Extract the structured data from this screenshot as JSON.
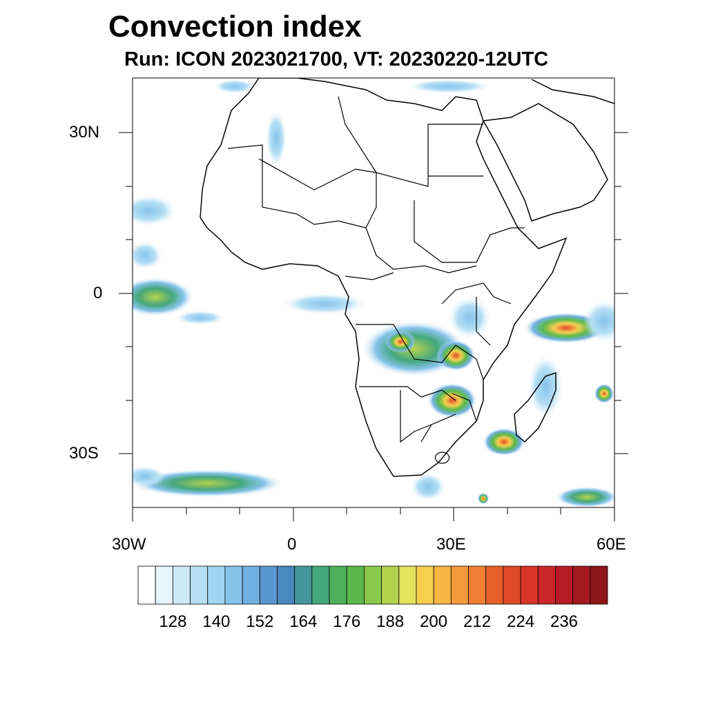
{
  "title": "Convection index",
  "subtitle": "Run: ICON 2023021700,  VT: 20230220-12UTC",
  "map": {
    "projection": "cylindrical equidistant",
    "region": "Africa",
    "lat_labels": [
      "30N",
      "0",
      "30S"
    ],
    "lon_labels": [
      "30W",
      "0",
      "30E",
      "60E"
    ]
  },
  "colorbar": {
    "labels": [
      "128",
      "140",
      "152",
      "164",
      "176",
      "188",
      "200",
      "212",
      "224",
      "236"
    ],
    "colors": [
      "#ffffff",
      "#e8f4fb",
      "#cde8f7",
      "#b5dff5",
      "#9fd6f2",
      "#86c3ea",
      "#72b0e2",
      "#5a97d0",
      "#4a88bd",
      "#43979c",
      "#45a77c",
      "#4cb15a",
      "#5ab94a",
      "#8cc84b",
      "#b5d24f",
      "#e5e25c",
      "#f6cf4f",
      "#f6b444",
      "#f59a3c",
      "#f07f34",
      "#e7602c",
      "#e04a2a",
      "#d83429",
      "#c9262a",
      "#b71c26",
      "#a21a20",
      "#8d1618"
    ]
  }
}
